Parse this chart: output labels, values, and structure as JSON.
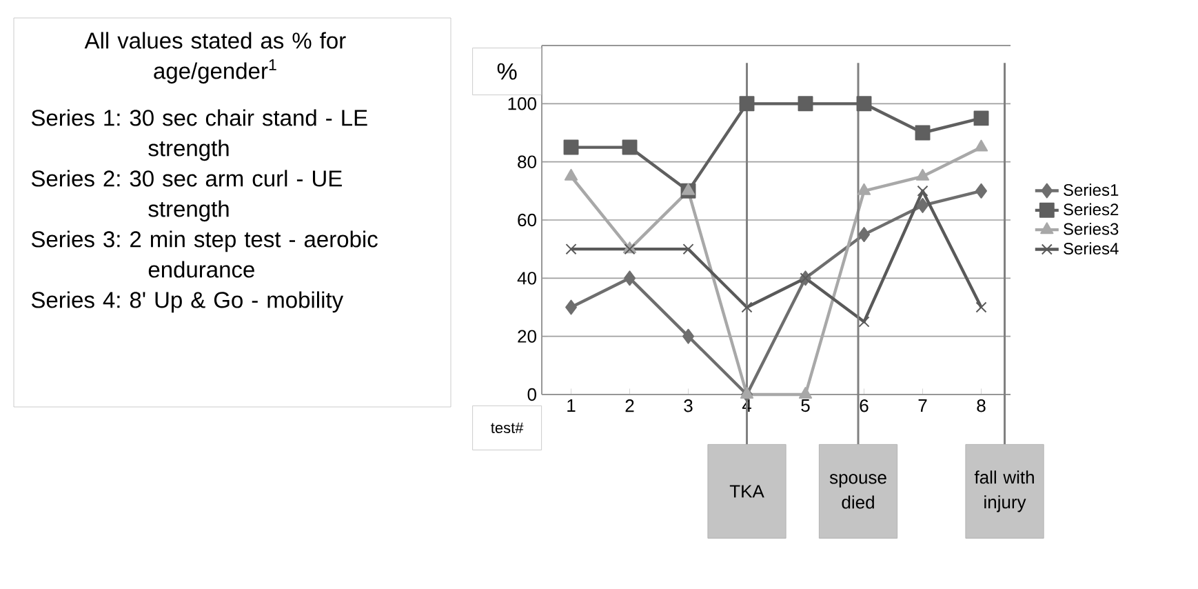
{
  "chart_data": {
    "type": "line",
    "x": [
      1,
      2,
      3,
      4,
      5,
      6,
      7,
      8
    ],
    "xlim": [
      0.5,
      8.5
    ],
    "xticks": [
      1,
      2,
      3,
      4,
      5,
      6,
      7,
      8
    ],
    "ylim": [
      0,
      120
    ],
    "yticks": [
      0,
      20,
      40,
      60,
      80,
      100
    ],
    "xlabel": "test#",
    "ylabel": "%",
    "grid": "y",
    "legend": "right",
    "series": [
      {
        "name": "Series1",
        "color": "#6e6e6e",
        "marker": "diamond",
        "values": [
          30,
          40,
          20,
          0,
          40,
          55,
          65,
          70
        ]
      },
      {
        "name": "Series2",
        "color": "#5f5f5f",
        "marker": "square",
        "values": [
          85,
          85,
          70,
          100,
          100,
          100,
          90,
          95
        ]
      },
      {
        "name": "Series3",
        "color": "#a8a8a8",
        "marker": "triangle",
        "values": [
          75,
          50,
          70,
          0,
          0,
          70,
          75,
          85
        ]
      },
      {
        "name": "Series4",
        "color": "#595959",
        "marker": "cross",
        "values": [
          50,
          50,
          50,
          30,
          40,
          25,
          70,
          30
        ]
      }
    ],
    "ref_lines": [
      {
        "axis": "x",
        "value": 4,
        "label": "TKA",
        "color": "#808080"
      },
      {
        "axis": "x",
        "value": 5.9,
        "label": "spouse died",
        "color": "#808080"
      },
      {
        "axis": "x",
        "value": 8.4,
        "label": "fall with injury",
        "color": "#808080"
      }
    ],
    "annotations": [
      "All values stated as % for age/gender$^{1}$",
      "Series 1: 30 sec chair stand - LE strength",
      "Series 2: 30 sec arm curl - UE strength",
      "Series 3: 2 min step test - aerobic endurance",
      "Series 4: 8' Up & Go - mobility"
    ]
  }
}
